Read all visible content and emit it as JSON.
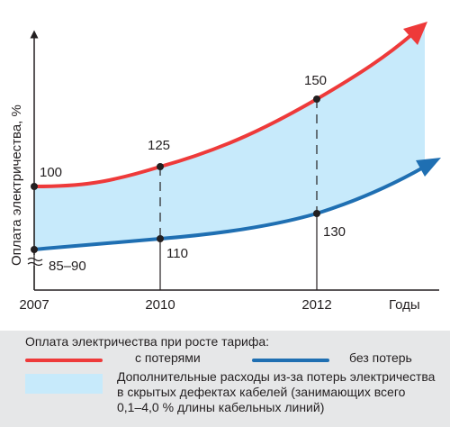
{
  "chart_data": {
    "type": "line",
    "ylabel": "Оплата электричества, %",
    "xlabel": "Годы",
    "categories": [
      "2007",
      "2010",
      "2012"
    ],
    "colors": {
      "with_losses": "#ee3a3a",
      "without_losses": "#1f6fb2",
      "band": "#c7eafb"
    },
    "series": [
      {
        "name": "с потерями",
        "key": "with_losses",
        "points": [
          {
            "x": "2007",
            "label": "100"
          },
          {
            "x": "2010",
            "label": "125"
          },
          {
            "x": "2012",
            "label": "150"
          }
        ]
      },
      {
        "name": "без потерь",
        "key": "without_losses",
        "points": [
          {
            "x": "2007",
            "label": "85–90"
          },
          {
            "x": "2010",
            "label": "110"
          },
          {
            "x": "2012",
            "label": "130"
          }
        ]
      }
    ],
    "axis_break_symbol": "≈"
  },
  "legend": {
    "title": "Оплата электричества при росте тарифа:",
    "with_losses": "с потерями",
    "without_losses": "без потерь",
    "band_lines": [
      "Дополнительные расходы из-за потерь электричества",
      "в скрытых дефектах кабелей (занимающих всего",
      "0,1–4,0 % длины кабельных линий)"
    ]
  }
}
